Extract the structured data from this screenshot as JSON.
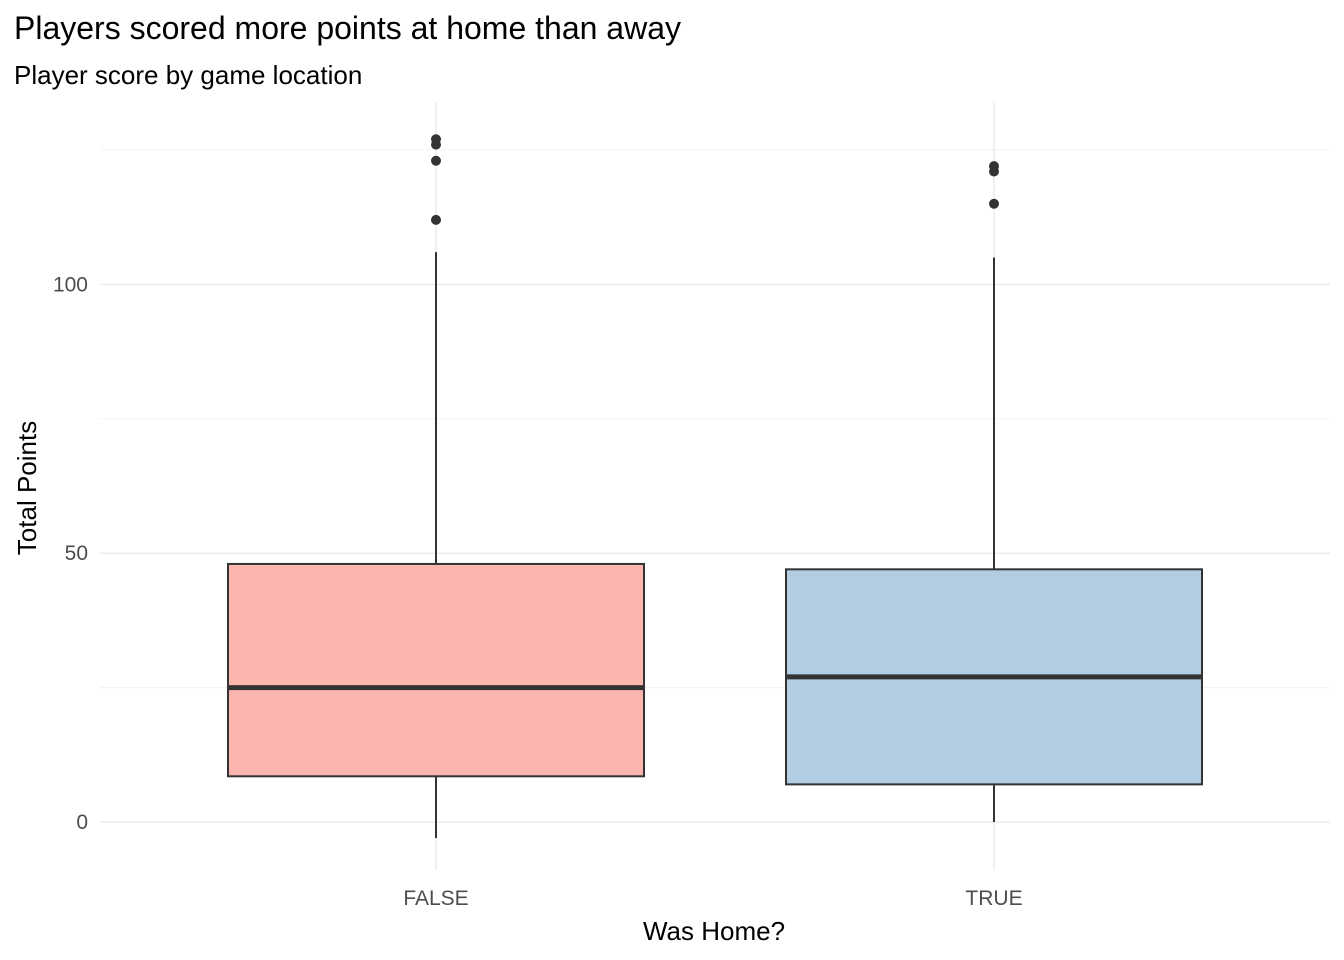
{
  "chart_data": {
    "type": "boxplot",
    "title": "Players scored more points at home than away",
    "subtitle": "Player score by game location",
    "xlabel": "Was Home?",
    "ylabel": "Total Points",
    "ylim": [
      -9,
      134
    ],
    "y_ticks": [
      0,
      50,
      100
    ],
    "y_minor_ticks": [
      25,
      75,
      125
    ],
    "grid": true,
    "legend": "none",
    "categories": [
      "FALSE",
      "TRUE"
    ],
    "boxes": [
      {
        "category": "FALSE",
        "whisker_low": -3,
        "q1": 8.5,
        "median": 25,
        "q3": 48,
        "whisker_high": 106,
        "outliers": [
          112,
          123,
          126,
          127
        ],
        "fill": "#fbb4ae"
      },
      {
        "category": "TRUE",
        "whisker_low": 0,
        "q1": 7,
        "median": 27,
        "q3": 47,
        "whisker_high": 105,
        "outliers": [
          115,
          121,
          122
        ],
        "fill": "#b3cde3"
      }
    ],
    "colors": {
      "grid_major": "#ebebeb",
      "grid_minor": "#f3f3f3",
      "outline": "#333333"
    }
  }
}
